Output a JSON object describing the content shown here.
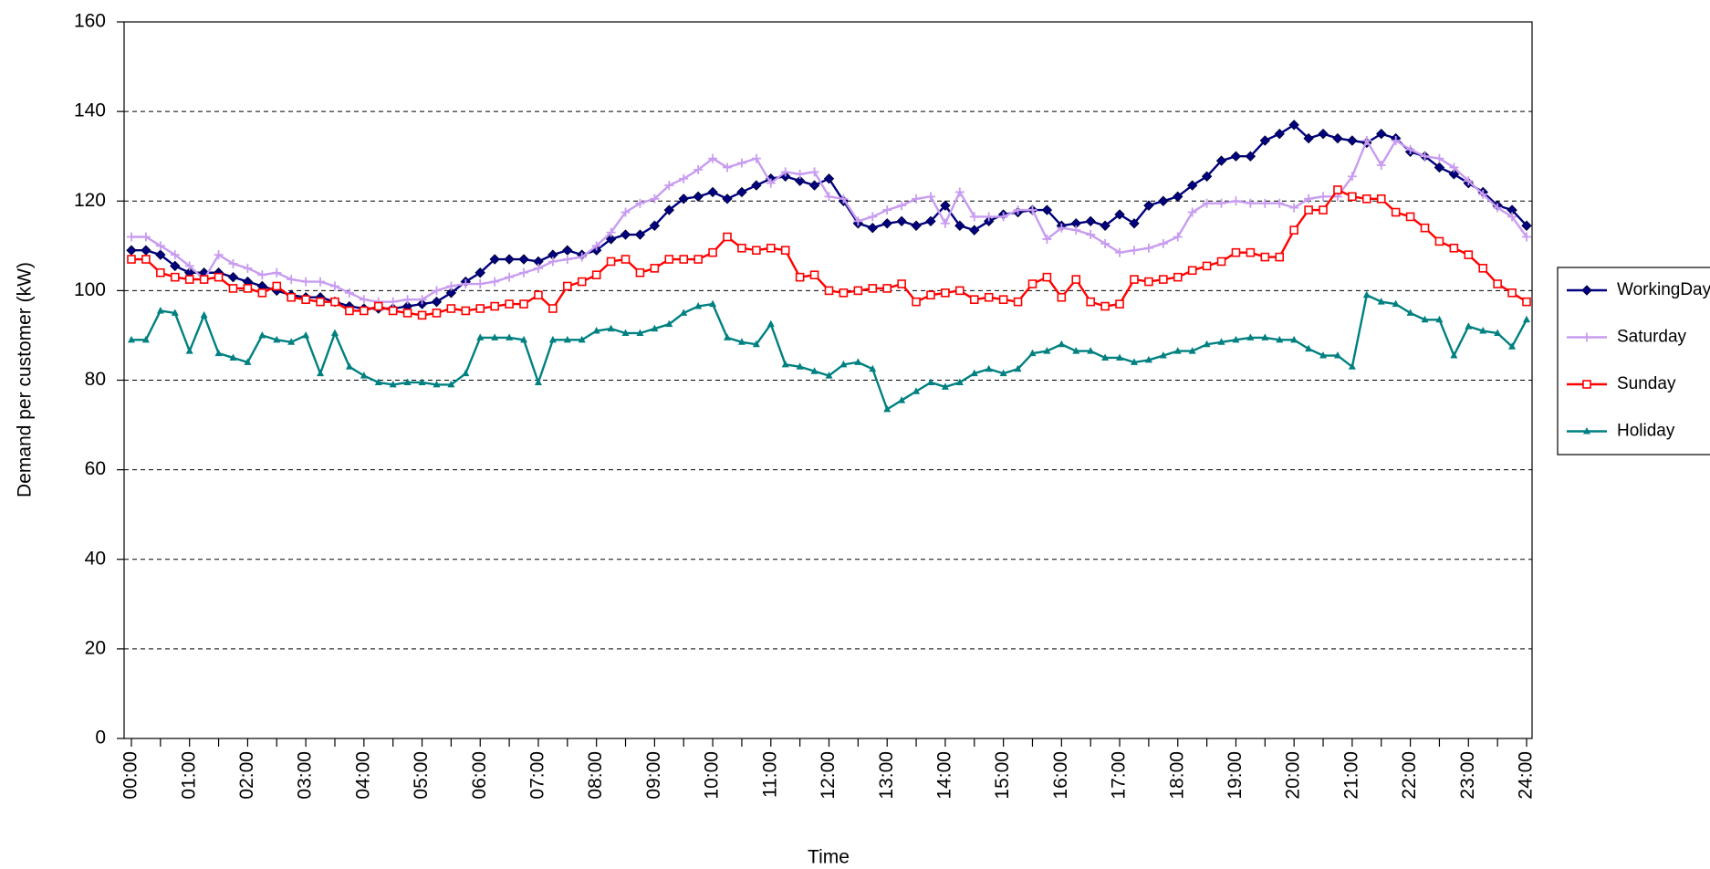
{
  "chart_data": {
    "type": "line",
    "x_label": "Time",
    "y_label": "Demand per customer (kW)",
    "categories": [
      "00:00",
      null,
      null,
      null,
      "01:00",
      null,
      null,
      null,
      "02:00",
      null,
      null,
      null,
      "03:00",
      null,
      null,
      null,
      "04:00",
      null,
      null,
      null,
      "05:00",
      null,
      null,
      null,
      "06:00",
      null,
      null,
      null,
      "07:00",
      null,
      null,
      null,
      "08:00",
      null,
      null,
      null,
      "09:00",
      null,
      null,
      null,
      "10:00",
      null,
      null,
      null,
      "11:00",
      null,
      null,
      null,
      "12:00",
      null,
      null,
      null,
      "13:00",
      null,
      null,
      null,
      "14:00",
      null,
      null,
      null,
      "15:00",
      null,
      null,
      null,
      "16:00",
      null,
      null,
      null,
      "17:00",
      null,
      null,
      null,
      "18:00",
      null,
      null,
      null,
      "19:00",
      null,
      null,
      null,
      "20:00",
      null,
      null,
      null,
      "21:00",
      null,
      null,
      null,
      "22:00",
      null,
      null,
      null,
      "23:00",
      null,
      null,
      null,
      "24:00"
    ],
    "series": [
      {
        "name": "WorkingDay",
        "color": "#000080",
        "marker": "diamond",
        "values": [
          109,
          109,
          108,
          105.5,
          104,
          104,
          104,
          103,
          102,
          101,
          100,
          99,
          98.5,
          98.5,
          97.5,
          96.5,
          96,
          96,
          96,
          96.5,
          97,
          97.5,
          99.5,
          102,
          104,
          107,
          107,
          107,
          106.5,
          108,
          109,
          108,
          109,
          111.5,
          112.5,
          112.5,
          114.5,
          118,
          120.5,
          121,
          122,
          120.5,
          122,
          123.5,
          125,
          125.5,
          124.5,
          123.5,
          125,
          120,
          115,
          114,
          115,
          115.5,
          114.5,
          115.5,
          119,
          114.5,
          113.5,
          115.5,
          117,
          117.5,
          118,
          118,
          114.5,
          115,
          115.5,
          114.5,
          117,
          115,
          119,
          120,
          121,
          123.5,
          125.5,
          129,
          130,
          130,
          133.5,
          135,
          137,
          134,
          135,
          134,
          133.5,
          133,
          135,
          134,
          131,
          130,
          127.5,
          126,
          124,
          122,
          119,
          118,
          114.5
        ]
      },
      {
        "name": "Saturday",
        "color": "#c89cf0",
        "marker": "plus",
        "values": [
          112,
          112,
          110,
          108,
          105.5,
          102.5,
          108,
          106,
          105,
          103.5,
          104,
          102.5,
          102,
          102,
          101,
          99.5,
          98,
          97.5,
          97.5,
          98,
          98,
          100,
          101,
          101.5,
          101.5,
          102,
          103,
          104,
          105,
          106.5,
          107,
          107.5,
          110,
          113,
          117.5,
          119.5,
          120.5,
          123.5,
          125,
          127,
          129.5,
          127.5,
          128.5,
          129.5,
          124,
          126.5,
          126,
          126.5,
          121,
          120.5,
          115.5,
          116.5,
          118,
          119,
          120.5,
          121,
          115,
          122,
          116.5,
          116.5,
          116.5,
          118,
          118,
          111.5,
          114,
          113.5,
          112.5,
          110.5,
          108.5,
          109,
          109.5,
          110.5,
          112,
          117.5,
          119.5,
          119.5,
          120,
          119.5,
          119.5,
          119.5,
          118.5,
          120.5,
          121,
          121,
          125.5,
          133.5,
          128,
          133.5,
          131.5,
          130,
          129.5,
          127.5,
          124.5,
          121.5,
          118.5,
          116.5,
          112
        ]
      },
      {
        "name": "Sunday",
        "color": "#ff0000",
        "marker": "square",
        "values": [
          107,
          107,
          104,
          103,
          102.5,
          102.5,
          103,
          100.5,
          100.5,
          99.5,
          101,
          98.5,
          98,
          97.5,
          97.5,
          95.5,
          95.5,
          96.5,
          95.5,
          95,
          94.5,
          95,
          96,
          95.5,
          96,
          96.5,
          97,
          97,
          99,
          96,
          101,
          102,
          103.5,
          106.5,
          107,
          104,
          105,
          107,
          107,
          107,
          108.5,
          112,
          109.5,
          109,
          109.5,
          109,
          103,
          103.5,
          100,
          99.5,
          100,
          100.5,
          100.5,
          101.5,
          97.5,
          99,
          99.5,
          100,
          98,
          98.5,
          98,
          97.5,
          101.5,
          103,
          98.5,
          102.5,
          97.5,
          96.5,
          97,
          102.5,
          102,
          102.5,
          103,
          104.5,
          105.5,
          106.5,
          108.5,
          108.5,
          107.5,
          107.5,
          113.5,
          118,
          118,
          122.5,
          121,
          120.5,
          120.5,
          117.5,
          116.5,
          114,
          111,
          109.5,
          108,
          105,
          101.5,
          99.5,
          97.5
        ]
      },
      {
        "name": "Holiday",
        "color": "#008080",
        "marker": "triangle",
        "values": [
          89,
          89,
          95.5,
          95,
          86.5,
          94.5,
          86,
          85,
          84,
          90,
          89,
          88.5,
          90,
          81.5,
          90.5,
          83,
          81,
          79.5,
          79,
          79.5,
          79.5,
          79,
          79,
          81.5,
          89.5,
          89.5,
          89.5,
          89,
          79.5,
          89,
          89,
          89,
          91,
          91.5,
          90.5,
          90.5,
          91.5,
          92.5,
          95,
          96.5,
          97,
          89.5,
          88.5,
          88,
          92.5,
          83.5,
          83,
          82,
          81,
          83.5,
          84,
          82.5,
          73.5,
          75.5,
          77.5,
          79.5,
          78.5,
          79.5,
          81.5,
          82.5,
          81.5,
          82.5,
          86,
          86.5,
          88,
          86.5,
          86.5,
          85,
          85,
          84,
          84.5,
          85.5,
          86.5,
          86.5,
          88,
          88.5,
          89,
          89.5,
          89.5,
          89,
          89,
          87,
          85.5,
          85.5,
          83,
          99,
          97.5,
          97,
          95,
          93.5,
          93.5,
          85.5,
          92,
          91,
          90.5,
          87.5,
          93.5
        ]
      }
    ],
    "ylim": [
      0,
      160
    ],
    "yticks": [
      0,
      20,
      40,
      60,
      80,
      100,
      120,
      140,
      160
    ],
    "grid": true,
    "legend": "right"
  }
}
